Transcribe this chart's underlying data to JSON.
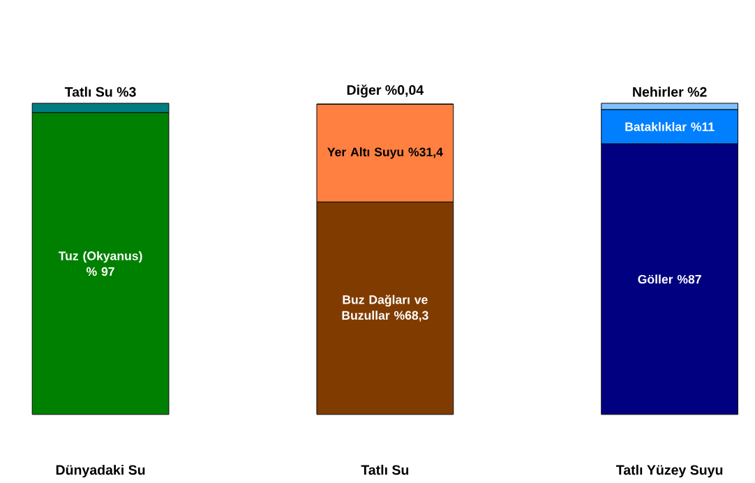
{
  "chart_data": {
    "type": "bar",
    "stacked": true,
    "categories": [
      "Dünyadaki Su",
      "Tatlı Su",
      "Tatlı Yüzey Suyu"
    ],
    "series": [
      {
        "name": "Tuz (Okyanus)",
        "color": "#008000",
        "values": [
          97,
          null,
          null
        ],
        "value_labels": [
          "% 97",
          null,
          null
        ]
      },
      {
        "name": "Tatlı Su",
        "color": "#007c80",
        "values": [
          3,
          null,
          null
        ],
        "value_labels": [
          "%3",
          null,
          null
        ]
      },
      {
        "name": "Buz Dağları ve Buzullar",
        "color": "#803c00",
        "values": [
          null,
          68.3,
          null
        ],
        "value_labels": [
          null,
          "%68,3",
          null
        ]
      },
      {
        "name": "Yer Altı Suyu",
        "color": "#ff8040",
        "values": [
          null,
          31.4,
          null
        ],
        "value_labels": [
          null,
          "%31,4",
          null
        ]
      },
      {
        "name": "Diğer",
        "color": "#ffc080",
        "values": [
          null,
          0.04,
          null
        ],
        "value_labels": [
          null,
          "%0,04",
          null
        ]
      },
      {
        "name": "Göller",
        "color": "#000080",
        "values": [
          null,
          null,
          87
        ],
        "value_labels": [
          null,
          null,
          "%87"
        ]
      },
      {
        "name": "Bataklıklar",
        "color": "#0080ff",
        "values": [
          null,
          null,
          11
        ],
        "value_labels": [
          null,
          null,
          "%11"
        ]
      },
      {
        "name": "Nehirler",
        "color": "#80c0ff",
        "values": [
          null,
          null,
          2
        ],
        "value_labels": [
          null,
          null,
          "%2"
        ]
      }
    ]
  }
}
